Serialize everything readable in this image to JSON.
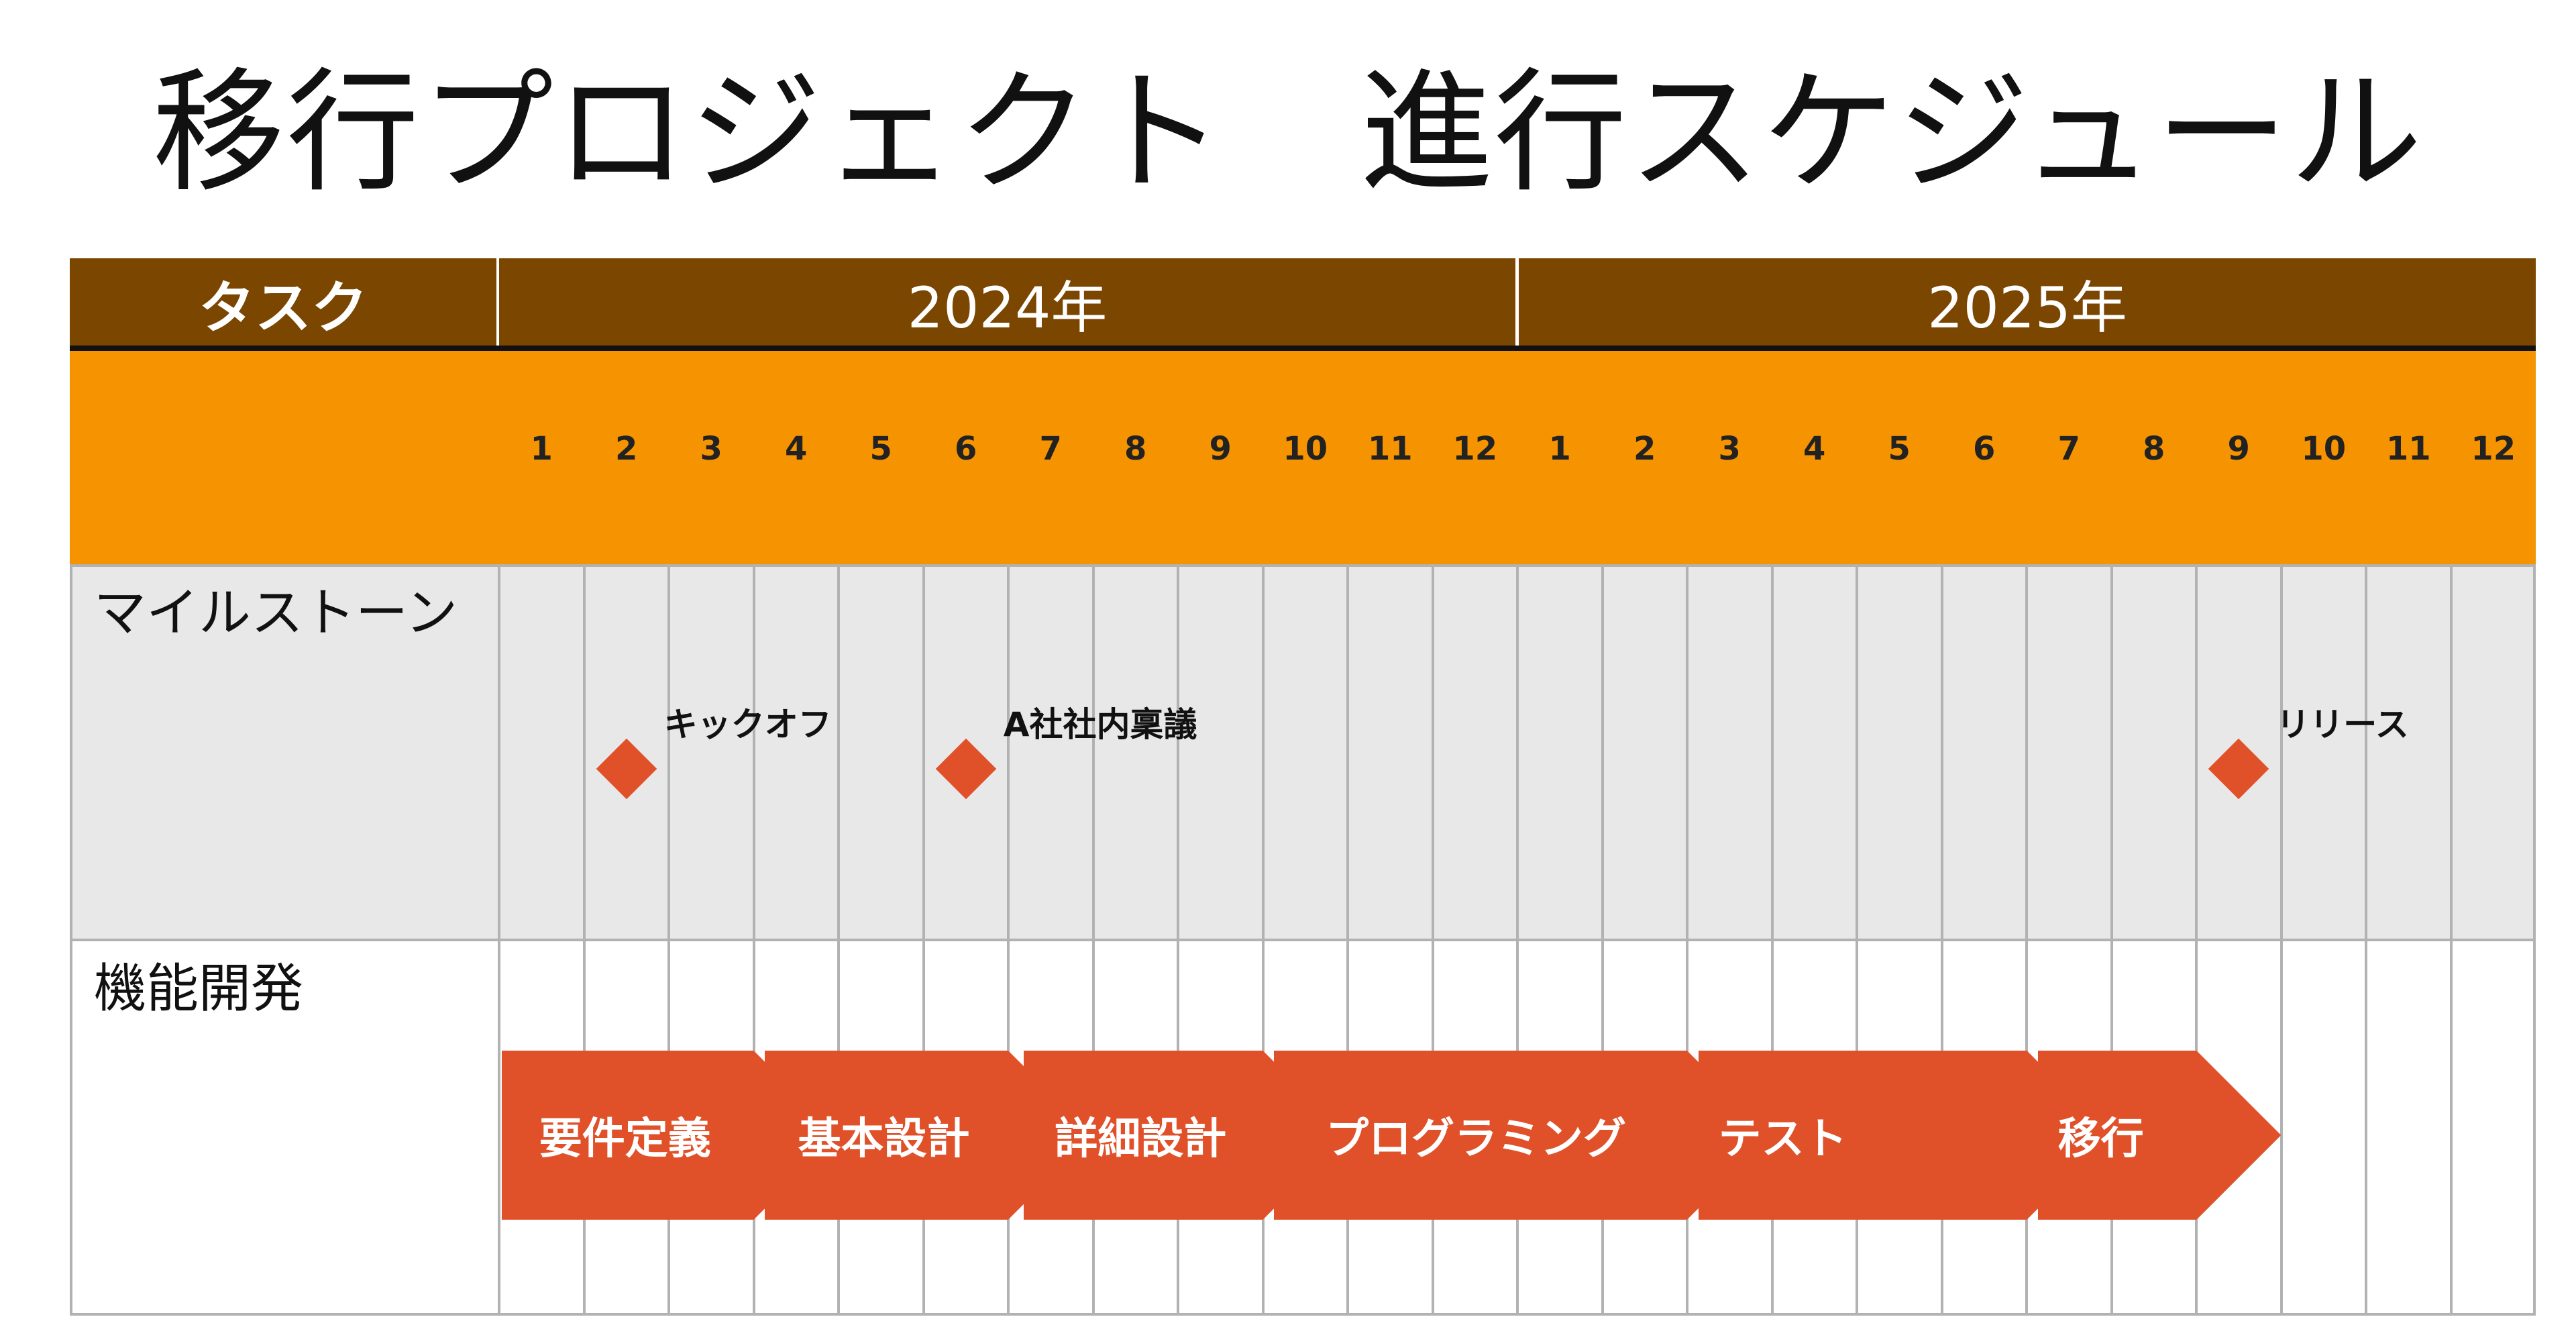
{
  "title": "移行プロジェクト　進行スケジュール",
  "header": {
    "task_label": "タスク",
    "year1": "2024年",
    "year2": "2025年"
  },
  "months": [
    "1",
    "2",
    "3",
    "4",
    "5",
    "6",
    "7",
    "8",
    "9",
    "10",
    "11",
    "12",
    "1",
    "2",
    "3",
    "4",
    "5",
    "6",
    "7",
    "8",
    "9",
    "10",
    "11",
    "12"
  ],
  "rows": {
    "milestones": "マイルストーン",
    "development": "機能開発"
  },
  "milestones": [
    {
      "label": "キックオフ",
      "month_index": 1
    },
    {
      "label": "A社社内稟議",
      "month_index": 5
    },
    {
      "label": "リリース",
      "month_index": 20
    }
  ],
  "phases": [
    {
      "label": "要件定義",
      "start": 0.0,
      "end": 3.0
    },
    {
      "label": "基本設計",
      "start": 3.1,
      "end": 6.0
    },
    {
      "label": "詳細設計",
      "start": 6.15,
      "end": 9.0
    },
    {
      "label": "プログラミング",
      "start": 9.1,
      "end": 14.0
    },
    {
      "label": "テスト",
      "start": 14.1,
      "end": 18.0
    },
    {
      "label": "移行",
      "start": 18.1,
      "end": 20.0
    }
  ],
  "colors": {
    "header": "#7a4600",
    "months_band": "#f59300",
    "accent": "#e0512a",
    "grid": "#b2b2b2",
    "milestone_row": "#e8e8e8"
  }
}
